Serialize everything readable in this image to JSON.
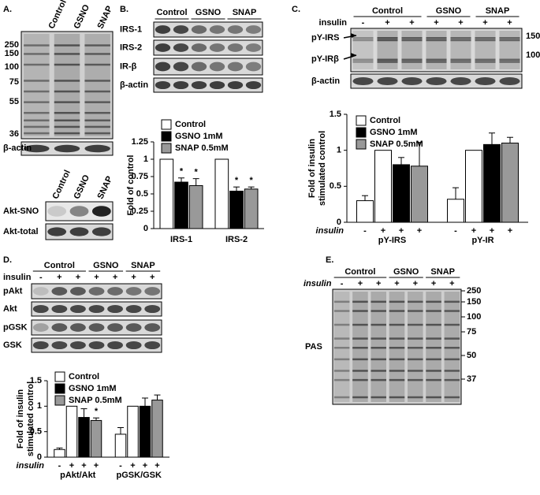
{
  "panels": {
    "A": {
      "label": "A.",
      "lanes": [
        "Control",
        "GSNO",
        "SNAP"
      ],
      "markers": [
        "250",
        "150",
        "100",
        "75",
        "55",
        "36"
      ],
      "loading": "β-actin",
      "lanes2": [
        "Control",
        "GSNO",
        "SNAP"
      ],
      "rows2": [
        "Akt-SNO",
        "Akt-total"
      ]
    },
    "B": {
      "label": "B.",
      "groups": [
        "Control",
        "GSNO",
        "SNAP"
      ],
      "rows": [
        "IRS-1",
        "IRS-2",
        "IR-β",
        "β-actin"
      ]
    },
    "C": {
      "label": "C.",
      "insulin": "insulin",
      "signs": [
        "-",
        "+",
        "+",
        "+",
        "+",
        "+",
        "+"
      ],
      "groups": [
        "Control",
        "GSNO",
        "SNAP"
      ],
      "rows": [
        "pY-IRS",
        "pY-IRβ",
        "β-actin"
      ],
      "markers": [
        "150",
        "100"
      ]
    },
    "D": {
      "label": "D.",
      "insulin": "insulin",
      "signs": [
        "-",
        "+",
        "+",
        "+",
        "+",
        "+",
        "+"
      ],
      "groups": [
        "Control",
        "GSNO",
        "SNAP"
      ],
      "rows": [
        "pAkt",
        "Akt",
        "pGSK",
        "GSK"
      ]
    },
    "E": {
      "label": "E.",
      "insulin": "insulin",
      "signs": [
        "-",
        "+",
        "+",
        "+",
        "+",
        "+",
        "+"
      ],
      "groups": [
        "Control",
        "GSNO",
        "SNAP"
      ],
      "markers": [
        "250",
        "150",
        "100",
        "75",
        "50",
        "37"
      ],
      "row": "PAS"
    }
  },
  "chart_data": [
    {
      "type": "bar",
      "y_label": "Fold of control",
      "ylim": [
        0,
        1.25
      ],
      "yticks": [
        0,
        0.25,
        0.5,
        0.75,
        1,
        1.25
      ],
      "categories": [
        "IRS-1",
        "IRS-2"
      ],
      "series": [
        {
          "name": "Control",
          "color": "#ffffff",
          "values": [
            1,
            1
          ],
          "errors": [
            0,
            0
          ],
          "significance": [
            null,
            null
          ]
        },
        {
          "name": "GSNO 1mM",
          "color": "#000000",
          "values": [
            0.67,
            0.54
          ],
          "errors": [
            0.06,
            0.06
          ],
          "significance": [
            "*",
            "*"
          ]
        },
        {
          "name": "SNAP 0.5mM",
          "color": "#999999",
          "values": [
            0.62,
            0.57
          ],
          "errors": [
            0.1,
            0.03
          ],
          "significance": [
            "*",
            "*"
          ]
        }
      ]
    },
    {
      "type": "bar",
      "y_label": [
        "Fold of insulin",
        "stimulated control"
      ],
      "ylim": [
        0,
        1.5
      ],
      "yticks": [
        0,
        0.5,
        1,
        1.5
      ],
      "categories": [
        "pY-IRS",
        "pY-IR"
      ],
      "x_label": "insulin",
      "bar_labels": [
        "-",
        "+",
        "+",
        "+"
      ],
      "series": [
        {
          "color": "#ffffff",
          "values": [
            0.3,
            0.32
          ],
          "errors": [
            0.07,
            0.16
          ]
        },
        {
          "name": "Control",
          "color": "#ffffff",
          "values": [
            1,
            1
          ],
          "errors": [
            0,
            0
          ]
        },
        {
          "name": "GSNO 1mM",
          "color": "#000000",
          "values": [
            0.8,
            1.08
          ],
          "errors": [
            0.1,
            0.16
          ]
        },
        {
          "name": "SNAP 0.5mM",
          "color": "#999999",
          "values": [
            0.78,
            1.1
          ],
          "errors": [
            0.33,
            0.08
          ]
        }
      ]
    },
    {
      "type": "bar",
      "y_label": [
        "Fold of insulin",
        "stimulated control"
      ],
      "ylim": [
        0,
        1.5
      ],
      "yticks": [
        0,
        0.5,
        1,
        1.5
      ],
      "categories": [
        "pAkt/Akt",
        "pGSK/GSK"
      ],
      "x_label": "insulin",
      "bar_labels": [
        "-",
        "+",
        "+",
        "+"
      ],
      "series": [
        {
          "color": "#ffffff",
          "values": [
            0.15,
            0.45
          ],
          "errors": [
            0.03,
            0.13
          ],
          "significance": [
            null,
            null
          ]
        },
        {
          "name": "Control",
          "color": "#ffffff",
          "values": [
            1,
            1
          ],
          "errors": [
            0,
            0
          ],
          "significance": [
            null,
            null
          ]
        },
        {
          "name": "GSNO 1mM",
          "color": "#000000",
          "values": [
            0.78,
            1.0
          ],
          "errors": [
            0.17,
            0.16
          ],
          "significance": [
            null,
            null
          ]
        },
        {
          "name": "SNAP 0.5mM",
          "color": "#999999",
          "values": [
            0.72,
            1.12
          ],
          "errors": [
            0.05,
            0.1
          ],
          "significance": [
            "*",
            null
          ]
        }
      ]
    }
  ]
}
